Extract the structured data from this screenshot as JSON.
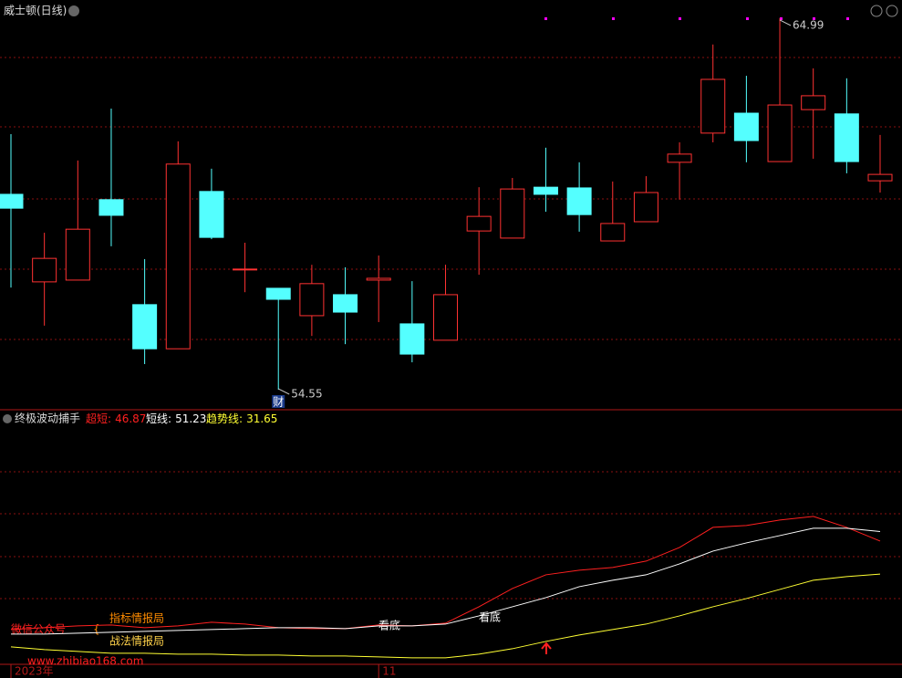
{
  "chart_data": [
    {
      "type": "candlestick",
      "title": "威士顿(日线)",
      "categories": [
        "2023年",
        null,
        null,
        null,
        null,
        null,
        null,
        null,
        null,
        null,
        null,
        "11",
        null,
        null,
        null,
        null,
        null,
        null,
        null,
        null,
        null,
        null,
        null,
        null,
        null,
        null,
        null
      ],
      "open": [
        60.04,
        57.58,
        57.63,
        59.89,
        56.94,
        55.7,
        60.12,
        57.94,
        57.4,
        56.63,
        57.22,
        57.63,
        56.4,
        55.94,
        59.01,
        58.81,
        60.24,
        60.22,
        58.73,
        59.27,
        60.94,
        61.76,
        62.32,
        60.96,
        62.42,
        62.3,
        60.42
      ],
      "high": [
        61.73,
        58.96,
        60.99,
        62.45,
        58.22,
        61.53,
        60.76,
        58.68,
        57.4,
        58.06,
        57.99,
        58.32,
        57.6,
        58.06,
        60.24,
        60.5,
        61.35,
        60.94,
        60.4,
        60.55,
        61.5,
        64.25,
        63.37,
        64.99,
        63.58,
        63.3,
        61.71
      ],
      "low": [
        57.42,
        56.35,
        57.63,
        58.58,
        55.27,
        55.7,
        58.78,
        57.29,
        54.55,
        56.06,
        55.83,
        56.45,
        55.32,
        55.94,
        57.78,
        58.81,
        59.55,
        58.99,
        58.73,
        59.27,
        59.89,
        61.5,
        60.94,
        60.96,
        61.04,
        60.63,
        60.09
      ],
      "close": [
        59.65,
        58.24,
        59.06,
        59.45,
        55.7,
        60.89,
        58.83,
        57.94,
        57.09,
        57.53,
        56.73,
        57.68,
        55.55,
        57.22,
        59.42,
        60.19,
        60.04,
        59.47,
        59.22,
        60.09,
        61.17,
        63.27,
        61.55,
        62.55,
        62.81,
        60.96,
        60.6
      ],
      "up_color": "#ff3232",
      "down_color": "#54ffff",
      "ylim": [
        54.09,
        65.5
      ],
      "high_mark": 64.99,
      "low_mark": 54.55,
      "marker_text": "财"
    },
    {
      "type": "line",
      "title": "终极波动捕手",
      "separator": ":",
      "series": [
        {
          "name": "超短",
          "color": "#ff2020",
          "values": [
            6.13,
            6.97,
            7.81,
            8.23,
            6.97,
            7.81,
            9.49,
            8.65,
            6.97,
            6.55,
            6.55,
            8.23,
            7.81,
            9.07,
            16.63,
            25.03,
            31.33,
            33.43,
            34.69,
            37.63,
            43.93,
            53.17,
            54.01,
            56.53,
            58.21,
            53.17,
            46.87
          ]
        },
        {
          "name": "短线",
          "color": "#ffffff",
          "values": [
            4.03,
            4.03,
            4.45,
            4.87,
            5.29,
            5.71,
            6.13,
            6.55,
            6.97,
            6.97,
            6.55,
            7.81,
            7.81,
            8.65,
            12.43,
            16.63,
            20.83,
            25.87,
            28.81,
            31.33,
            36.37,
            42.25,
            46.03,
            49.39,
            52.75,
            52.75,
            51.23
          ]
        },
        {
          "name": "趋势线",
          "color": "#ffff33",
          "values": [
            -1.85,
            -3.11,
            -3.95,
            -4.79,
            -4.79,
            -5.21,
            -5.21,
            -5.63,
            -5.63,
            -6.05,
            -6.05,
            -6.47,
            -6.89,
            -6.89,
            -5.21,
            -2.69,
            0.67,
            3.61,
            6.13,
            8.65,
            12.43,
            16.63,
            20.41,
            24.61,
            28.81,
            30.49,
            31.65
          ]
        }
      ],
      "ylim": [
        -8.6,
        100.6
      ],
      "signals": [
        "看底",
        "看底"
      ],
      "watermark": {
        "label": "微信公众号",
        "brace": "{",
        "item1": "指标情报局",
        "item2": "战法情报局",
        "url": "www.zhibiao168.com"
      }
    }
  ]
}
